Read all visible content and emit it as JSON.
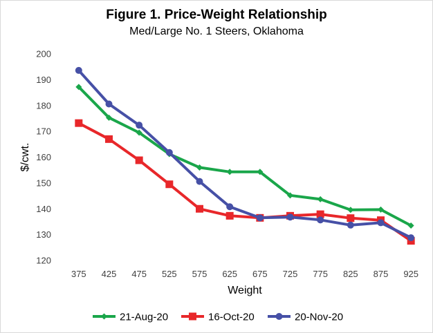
{
  "chart_data": {
    "type": "line",
    "title": "Figure 1. Price-Weight  Relationship",
    "subtitle": "Med/Large No. 1 Steers, Oklahoma",
    "xlabel": "Weight",
    "ylabel": "$/cwt.",
    "categories": [
      "375",
      "425",
      "475",
      "525",
      "575",
      "625",
      "675",
      "725",
      "775",
      "825",
      "875",
      "925"
    ],
    "ylim": [
      120,
      200
    ],
    "yticks": [
      120,
      130,
      140,
      150,
      160,
      170,
      180,
      190,
      200
    ],
    "grid": false,
    "legend_position": "bottom",
    "series": [
      {
        "name": "21-Aug-20",
        "color": "#1aa64a",
        "marker": "diamond",
        "values": [
          187.2,
          175.3,
          169.5,
          161.2,
          156.0,
          154.3,
          154.3,
          145.2,
          143.7,
          139.6,
          139.7,
          133.5
        ]
      },
      {
        "name": "16-Oct-20",
        "color": "#e8272a",
        "marker": "square",
        "values": [
          173.2,
          167.0,
          158.8,
          149.5,
          140.0,
          137.3,
          136.5,
          137.3,
          137.9,
          136.4,
          135.6,
          127.6
        ]
      },
      {
        "name": "20-Nov-20",
        "color": "#4650a6",
        "marker": "circle",
        "values": [
          193.6,
          180.6,
          172.4,
          161.8,
          150.6,
          140.8,
          136.5,
          136.8,
          135.7,
          133.7,
          134.6,
          128.8
        ]
      }
    ]
  }
}
